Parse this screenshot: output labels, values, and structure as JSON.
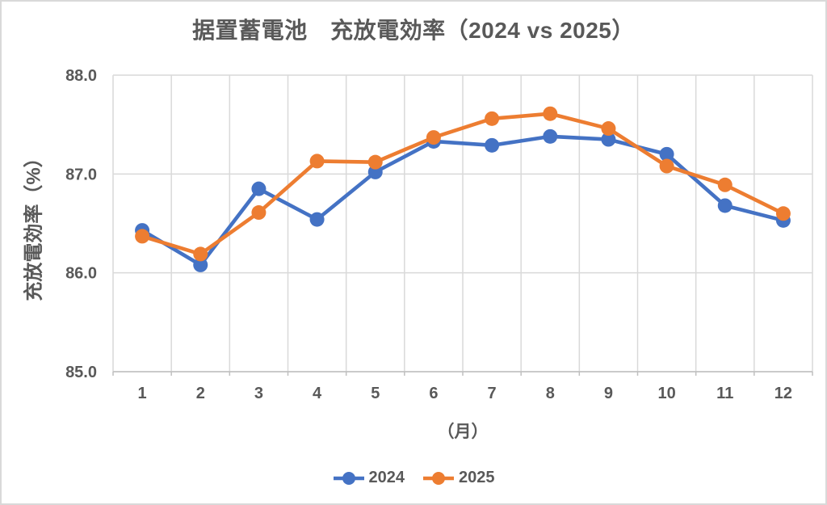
{
  "colors": {
    "text": "#595959",
    "gridline": "#d9d9d9",
    "axis_line": "#bfbfbf",
    "frame_border": "#d9d9d9",
    "background": "#ffffff",
    "series_2024": "#4472C4",
    "series_2025": "#ED7D31"
  },
  "legend": {
    "items": [
      {
        "label": "2024",
        "color": "#4472C4"
      },
      {
        "label": "2025",
        "color": "#ED7D31"
      }
    ]
  },
  "chart_data": {
    "type": "line",
    "title": "据置蓄電池　充放電効率（2024 vs 2025）",
    "xlabel": "（月）",
    "ylabel": "充放電効率（%）",
    "categories": [
      1,
      2,
      3,
      4,
      5,
      6,
      7,
      8,
      9,
      10,
      11,
      12
    ],
    "series": [
      {
        "name": "2024",
        "color": "#4472C4",
        "values": [
          86.43,
          86.08,
          86.85,
          86.54,
          87.02,
          87.33,
          87.29,
          87.38,
          87.35,
          87.2,
          86.68,
          86.53
        ]
      },
      {
        "name": "2025",
        "color": "#ED7D31",
        "values": [
          86.37,
          86.19,
          86.61,
          87.13,
          87.12,
          87.37,
          87.56,
          87.61,
          87.46,
          87.08,
          86.89,
          86.6
        ]
      }
    ],
    "ylim": [
      85.0,
      88.0
    ],
    "ytick_step": 1.0,
    "ytick_labels": [
      "85.0",
      "86.0",
      "87.0",
      "88.0"
    ],
    "grid": true,
    "legend_position": "bottom",
    "marker": "circle"
  }
}
